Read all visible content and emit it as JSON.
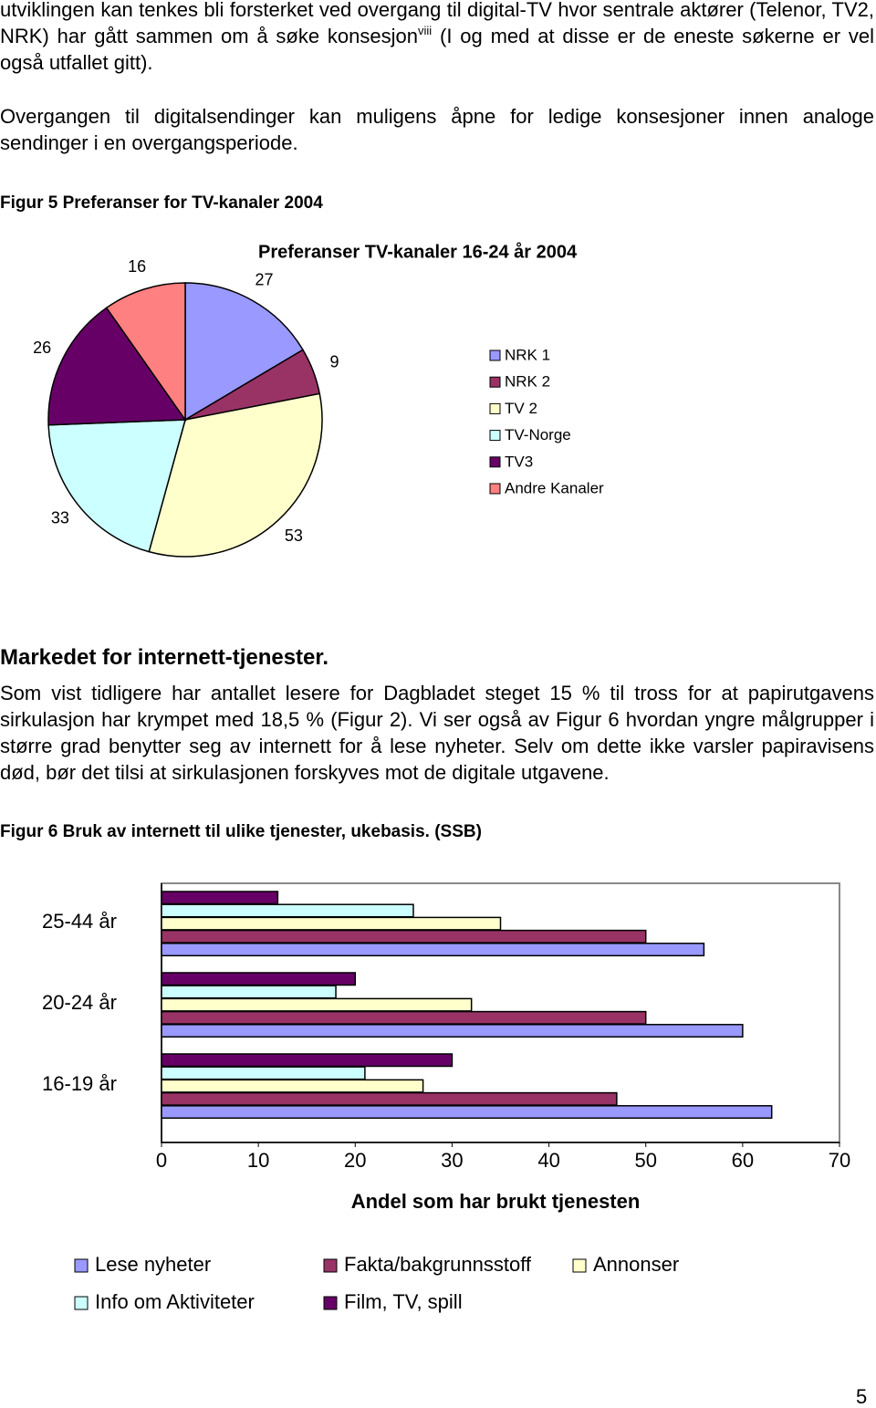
{
  "intro": {
    "text_before": "utviklingen kan tenkes bli forsterket ved overgang til digital-TV hvor sentrale aktører (Telenor, TV2, NRK) har gått sammen om å søke konsesjon",
    "note_ref": "viii",
    "text_after": "(I og med at disse er de eneste søkerne er vel også utfallet gitt)."
  },
  "paragraph_2": "Overgangen til digitalsendinger kan muligens åpne for ledige konsesjoner innen analoge sendinger i en overgangsperiode.",
  "figure_5_caption": "Figur 5 Preferanser for TV-kanaler 2004",
  "heading": "Markedet for internett-tjenester.",
  "paragraph_3": "Som vist tidligere har antallet lesere for Dagbladet steget 15 % til tross for at papirutgavens sirkulasjon har krympet med 18,5 % (Figur 2). Vi ser også av Figur 6 hvordan yngre målgrupper i større grad benytter seg av internett for å lese nyheter. Selv om dette ikke varsler papiravisens død, bør det tilsi at sirkulasjonen forskyves mot de digitale utgavene.",
  "figure_6_caption": "Figur 6 Bruk av internett til ulike tjenester, ukebasis. (SSB)",
  "page_number": "5",
  "chart_data": [
    {
      "type": "pie",
      "title": "Preferanser TV-kanaler 16-24 år 2004",
      "categories": [
        "NRK 1",
        "NRK 2",
        "TV 2",
        "TV-Norge",
        "TV3",
        "Andre Kanaler"
      ],
      "values": [
        27,
        9,
        53,
        33,
        26,
        16
      ],
      "colors": [
        "#9999ff",
        "#993366",
        "#ffffcc",
        "#ccffff",
        "#660066",
        "#ff8080"
      ],
      "legend": "right"
    },
    {
      "type": "hbar",
      "x_label": "Andel som har brukt tjenesten",
      "categories": [
        "25-44 år",
        "20-24 år",
        "16-19 år"
      ],
      "series": [
        {
          "name": "Lese nyheter",
          "color": "#9999ff",
          "values": [
            56,
            60,
            63
          ]
        },
        {
          "name": "Fakta/bakgrunnsstoff",
          "color": "#993366",
          "values": [
            50,
            50,
            47
          ]
        },
        {
          "name": "Annonser",
          "color": "#ffffcc",
          "values": [
            35,
            32,
            27
          ]
        },
        {
          "name": "Info om Aktiviteter",
          "color": "#ccffff",
          "values": [
            26,
            18,
            21
          ]
        },
        {
          "name": "Film, TV, spill",
          "color": "#660066",
          "values": [
            12,
            20,
            30
          ]
        }
      ],
      "xlim": [
        0,
        70
      ],
      "xticks": [
        0,
        10,
        20,
        30,
        40,
        50,
        60,
        70
      ],
      "legend": "bottom"
    }
  ]
}
